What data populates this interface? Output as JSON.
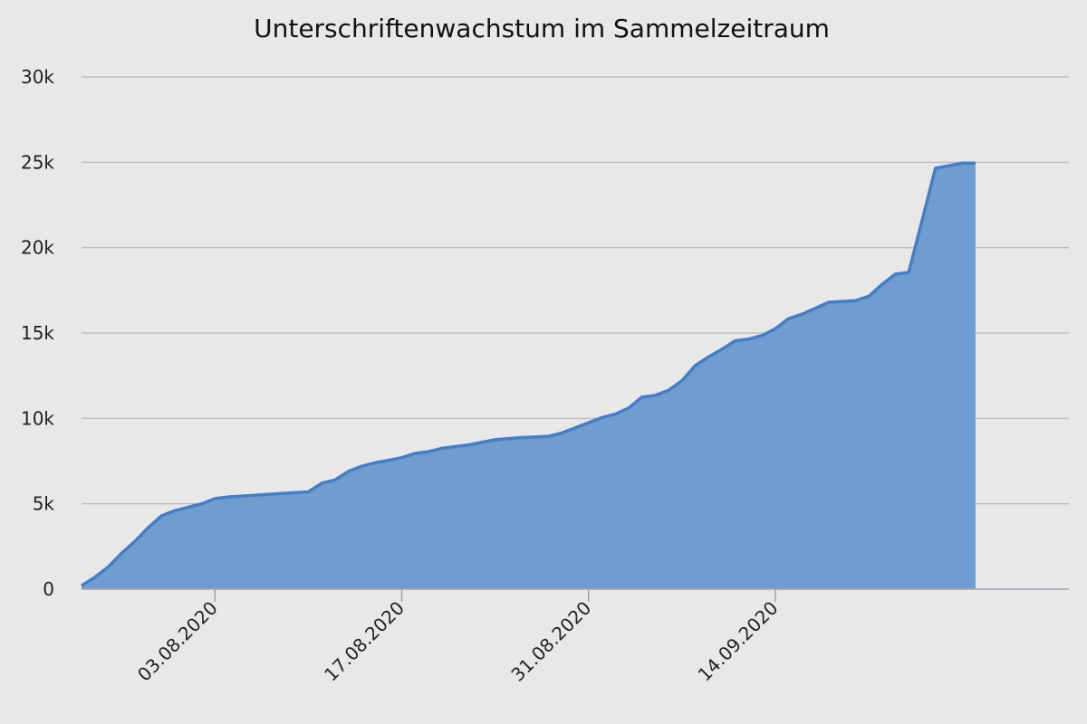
{
  "chart_data": {
    "type": "area",
    "title": "Unterschriftenwachstum im Sammelzeitraum",
    "xlabel": "",
    "ylabel": "",
    "ylim": [
      0,
      30000
    ],
    "yticks": [
      {
        "value": 0,
        "label": "0"
      },
      {
        "value": 5000,
        "label": "5k"
      },
      {
        "value": 10000,
        "label": "10k"
      },
      {
        "value": 15000,
        "label": "15k"
      },
      {
        "value": 20000,
        "label": "20k"
      },
      {
        "value": 25000,
        "label": "25k"
      },
      {
        "value": 30000,
        "label": "30k"
      }
    ],
    "xlim": [
      "2020-07-24",
      "2020-10-06"
    ],
    "xticks": [
      {
        "date": "2020-08-03",
        "label": "03.08.2020"
      },
      {
        "date": "2020-08-17",
        "label": "17.08.2020"
      },
      {
        "date": "2020-08-31",
        "label": "31.08.2020"
      },
      {
        "date": "2020-09-14",
        "label": "14.09.2020"
      }
    ],
    "grid": true,
    "legend": "none",
    "colors": {
      "fill": "#6f9dd0",
      "line": "#4a7cc0",
      "grid": "#bdbdbd",
      "background": "#e8e8e8"
    },
    "series": [
      {
        "x": [
          "2020-07-24",
          "2020-07-25",
          "2020-07-26",
          "2020-07-27",
          "2020-07-28",
          "2020-07-29",
          "2020-07-30",
          "2020-07-31",
          "2020-08-01",
          "2020-08-02",
          "2020-08-03",
          "2020-08-04",
          "2020-08-06",
          "2020-08-08",
          "2020-08-10",
          "2020-08-11",
          "2020-08-12",
          "2020-08-13",
          "2020-08-14",
          "2020-08-15",
          "2020-08-16",
          "2020-08-17",
          "2020-08-18",
          "2020-08-19",
          "2020-08-20",
          "2020-08-21",
          "2020-08-22",
          "2020-08-24",
          "2020-08-25",
          "2020-08-26",
          "2020-08-28",
          "2020-08-29",
          "2020-08-30",
          "2020-08-31",
          "2020-09-01",
          "2020-09-02",
          "2020-09-03",
          "2020-09-04",
          "2020-09-05",
          "2020-09-06",
          "2020-09-07",
          "2020-09-08",
          "2020-09-09",
          "2020-09-10",
          "2020-09-11",
          "2020-09-12",
          "2020-09-13",
          "2020-09-14",
          "2020-09-15",
          "2020-09-16",
          "2020-09-17",
          "2020-09-18",
          "2020-09-20",
          "2020-09-21",
          "2020-09-22",
          "2020-09-23",
          "2020-09-24",
          "2020-09-25",
          "2020-09-26",
          "2020-09-28",
          "2020-09-29"
        ],
        "values": [
          200,
          700,
          1300,
          2100,
          2800,
          3600,
          4300,
          4600,
          4800,
          5000,
          5300,
          5400,
          5500,
          5600,
          5700,
          6200,
          6400,
          6900,
          7200,
          7400,
          7550,
          7700,
          7950,
          8050,
          8250,
          8350,
          8450,
          8750,
          8820,
          8880,
          8950,
          9150,
          9450,
          9750,
          10050,
          10250,
          10600,
          11250,
          11350,
          11650,
          12200,
          13100,
          13600,
          14050,
          14550,
          14650,
          14850,
          15250,
          15850,
          16100,
          16450,
          16800,
          16900,
          17150,
          17850,
          18450,
          18550,
          21600,
          24650,
          24950,
          24950
        ]
      }
    ]
  }
}
